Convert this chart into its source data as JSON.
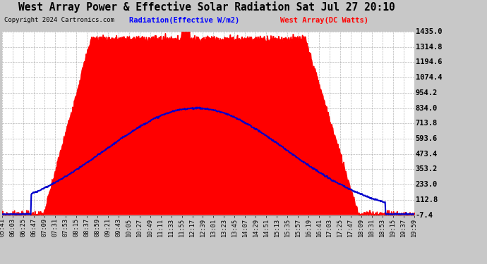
{
  "title": "West Array Power & Effective Solar Radiation Sat Jul 27 20:10",
  "copyright": "Copyright 2024 Cartronics.com",
  "legend_radiation": "Radiation(Effective W/m2)",
  "legend_west": "West Array(DC Watts)",
  "y_min": -7.4,
  "y_max": 1435.0,
  "y_ticks": [
    -7.4,
    112.8,
    233.0,
    353.2,
    473.4,
    593.6,
    713.8,
    834.0,
    954.2,
    1074.4,
    1194.6,
    1314.8,
    1435.0
  ],
  "fig_bg_color": "#c8c8c8",
  "plot_bg_color": "#ffffff",
  "grid_color": "#888888",
  "title_color": "#000000",
  "radiation_color": "#0000cc",
  "west_fill_color": "#ff0000",
  "x_tick_labels": [
    "05:41",
    "06:03",
    "06:25",
    "06:47",
    "07:09",
    "07:31",
    "07:53",
    "08:15",
    "08:37",
    "08:59",
    "09:21",
    "09:43",
    "10:05",
    "10:27",
    "10:49",
    "11:11",
    "11:33",
    "11:55",
    "12:17",
    "12:39",
    "13:01",
    "13:23",
    "13:45",
    "14:07",
    "14:29",
    "14:51",
    "15:13",
    "15:35",
    "15:57",
    "16:19",
    "16:41",
    "17:03",
    "17:25",
    "17:47",
    "18:09",
    "18:31",
    "18:53",
    "19:15",
    "19:37",
    "19:59"
  ]
}
